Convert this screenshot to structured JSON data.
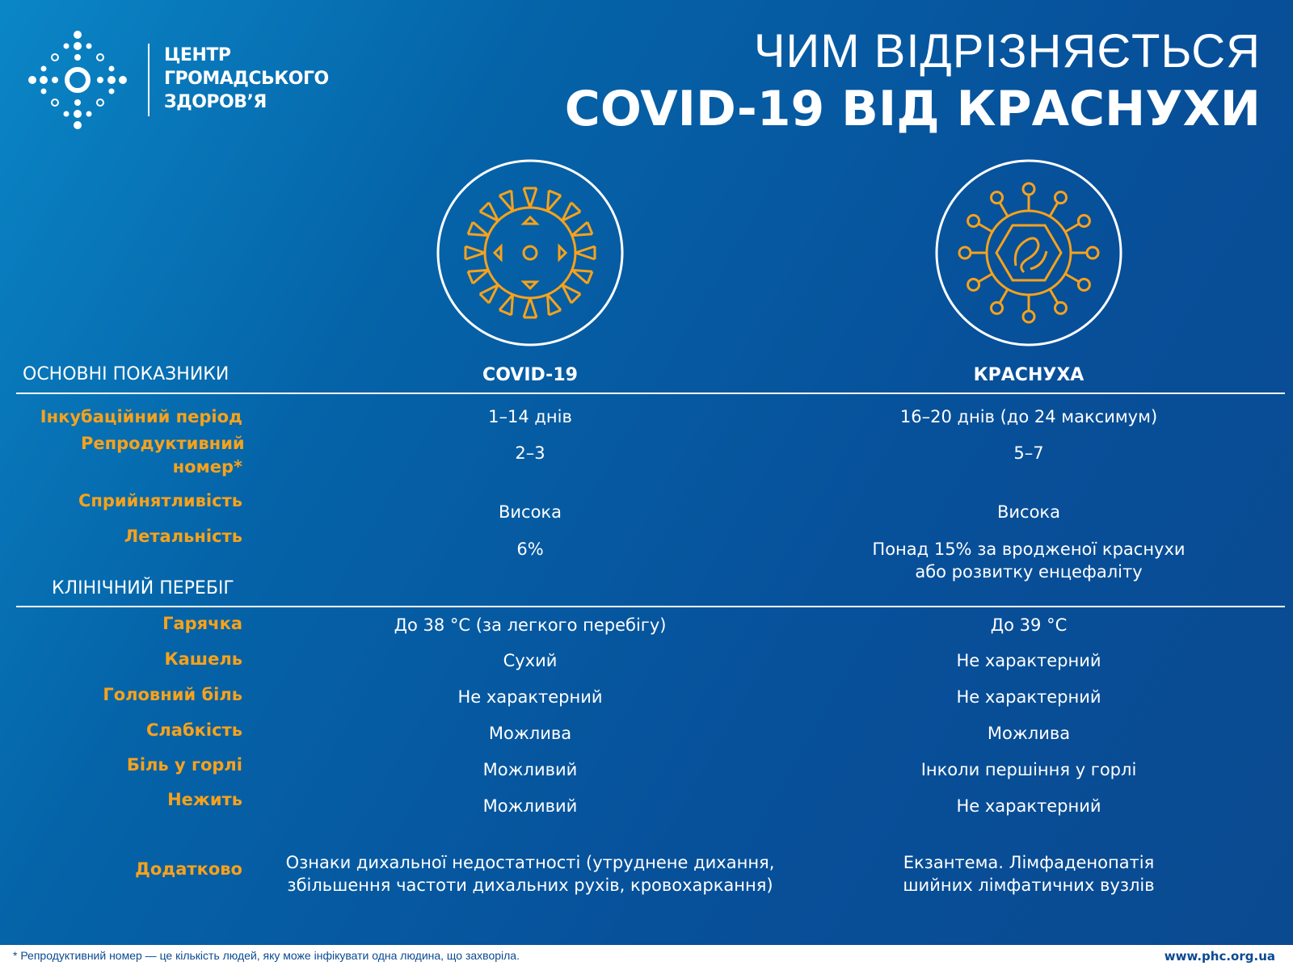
{
  "org": {
    "lines": [
      "ЦЕНТР",
      "ГРОМАДСЬКОГО",
      "ЗДОРОВ’Я"
    ]
  },
  "title": {
    "line1": "ЧИМ ВІДРІЗНЯЄТЬСЯ",
    "line2": "COVID-19 ВІД КРАСНУХИ"
  },
  "colors": {
    "accent": "#f7a21b",
    "background": "#07509a"
  },
  "section1": {
    "title": "ОСНОВНІ ПОКАЗНИКИ",
    "col1": "COVID-19",
    "col2": "КРАСНУХА"
  },
  "rows1": [
    {
      "label": "Інкубаційний період",
      "covid": "1–14 днів",
      "rubella": "16–20 днів (до 24 максимум)"
    },
    {
      "label": "Репродуктивний номер*",
      "covid": "2–3",
      "rubella": "5–7"
    },
    {
      "label": "Сприйнятливість",
      "covid": "Висока",
      "rubella": "Висока"
    },
    {
      "label": "Летальність",
      "covid": "6%",
      "rubella": "Понад 15% за вродженої краснухи або розвитку енцефаліту"
    }
  ],
  "section2": {
    "title": "КЛІНІЧНИЙ ПЕРЕБІГ"
  },
  "rows2": [
    {
      "label": "Гарячка",
      "covid": "До 38 °C (за легкого перебігу)",
      "rubella": "До 39 °C"
    },
    {
      "label": "Кашель",
      "covid": "Сухий",
      "rubella": "Не характерний"
    },
    {
      "label": "Головний біль",
      "covid": "Не характерний",
      "rubella": "Не характерний"
    },
    {
      "label": "Слабкість",
      "covid": "Можлива",
      "rubella": "Можлива"
    },
    {
      "label": "Біль у горлі",
      "covid": "Можливий",
      "rubella": "Інколи першіння у горлі"
    },
    {
      "label": "Нежить",
      "covid": "Можливий",
      "rubella": "Не характерний"
    },
    {
      "label": "Додатково",
      "covid": "Ознаки дихальної недостатності (утруднене дихання, збільшення частоти дихальних рухів, кровохаркання)",
      "rubella": "Екзантема. Лімфаденопатія шийних лімфатичних вузлів"
    }
  ],
  "footer": {
    "note": "* Репродуктивний номер — це кількість людей, яку може інфікувати одна людина, що захворіла.",
    "url": "www.phc.org.ua"
  }
}
